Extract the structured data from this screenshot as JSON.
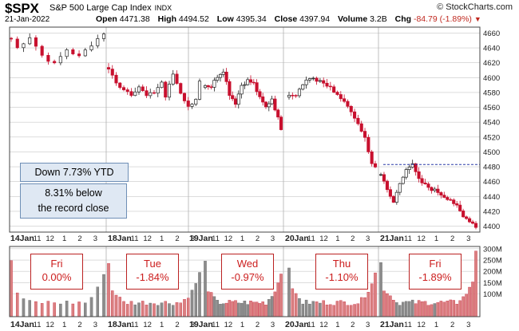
{
  "header": {
    "symbol": "$SPX",
    "name": "S&P 500 Large Cap Index",
    "exchange": "INDX",
    "brand": "© StockCharts.com",
    "date": "21-Jan-2022",
    "open_label": "Open",
    "open": "4471.38",
    "high_label": "High",
    "high": "4494.52",
    "low_label": "Low",
    "low": "4395.34",
    "close_label": "Close",
    "close": "4397.94",
    "volume_label": "Volume",
    "volume": "3.2B",
    "chg_label": "Chg",
    "chg": "-84.79 (-1.89%)",
    "chg_icon": "down-triangle-icon"
  },
  "annotations": {
    "ytd": "Down 7.73% YTD",
    "record_line1": "8.31% below",
    "record_line2": "the record close"
  },
  "days": [
    {
      "day": "Fri",
      "pct": "0.00%"
    },
    {
      "day": "Tue",
      "pct": "-1.84%"
    },
    {
      "day": "Wed",
      "pct": "-0.97%"
    },
    {
      "day": "Thu",
      "pct": "-1.10%"
    },
    {
      "day": "Fri",
      "pct": "-1.89%"
    }
  ],
  "colors": {
    "up": "#222222",
    "down": "#c8102e",
    "vol_up": "#8c8c8c",
    "vol_down": "#d98080",
    "grid": "#c8c8c8",
    "day_sep": "#b0b0b0",
    "ref_line": "#2a3aa8",
    "annotation_bg": "#dfe8f3"
  },
  "chart_data": {
    "type": "candlestick",
    "price_axis": {
      "ticks": [
        4400,
        4420,
        4440,
        4460,
        4480,
        4500,
        4520,
        4540,
        4560,
        4580,
        4600,
        4620,
        4640,
        4660
      ],
      "range": [
        4392,
        4668
      ]
    },
    "volume_axis": {
      "ticks": [
        "100M",
        "150M",
        "200M",
        "250M",
        "300M"
      ],
      "tick_values": [
        100,
        150,
        200,
        250,
        300
      ],
      "range": [
        0,
        310
      ]
    },
    "x_ticks": [
      "14Jan",
      "11",
      "12",
      "1",
      "2",
      "3",
      "18Jan",
      "11",
      "12",
      "1",
      "2",
      "3",
      "19Jan",
      "11",
      "12",
      "1",
      "2",
      "3",
      "20Jan",
      "11",
      "12",
      "1",
      "2",
      "3",
      "21Jan",
      "11",
      "12",
      "1",
      "2",
      "3"
    ],
    "reference_line": 4483,
    "sessions": [
      {
        "label": "14Jan",
        "anchors": [
          [
            0,
            4652
          ],
          [
            1,
            4640
          ],
          [
            3,
            4655
          ],
          [
            5,
            4630
          ],
          [
            7,
            4618
          ],
          [
            9,
            4638
          ],
          [
            11,
            4628
          ],
          [
            13,
            4645
          ],
          [
            15,
            4660
          ]
        ]
      },
      {
        "label": "18Jan",
        "anchors": [
          [
            0,
            4612
          ],
          [
            2,
            4592
          ],
          [
            4,
            4585
          ],
          [
            6,
            4578
          ],
          [
            8,
            4588
          ],
          [
            10,
            4575
          ],
          [
            12,
            4580
          ],
          [
            14,
            4594
          ],
          [
            15,
            4574
          ],
          [
            17,
            4605
          ],
          [
            19,
            4580
          ],
          [
            21,
            4560
          ],
          [
            23,
            4572
          ],
          [
            24,
            4594
          ]
        ]
      },
      {
        "label": "19Jan",
        "anchors": [
          [
            0,
            4590
          ],
          [
            2,
            4588
          ],
          [
            4,
            4602
          ],
          [
            6,
            4610
          ],
          [
            8,
            4578
          ],
          [
            10,
            4566
          ],
          [
            12,
            4590
          ],
          [
            14,
            4596
          ],
          [
            16,
            4592
          ],
          [
            18,
            4572
          ],
          [
            20,
            4560
          ],
          [
            22,
            4572
          ],
          [
            24,
            4545
          ],
          [
            25,
            4532
          ]
        ]
      },
      {
        "label": "20Jan",
        "anchors": [
          [
            0,
            4574
          ],
          [
            2,
            4578
          ],
          [
            4,
            4592
          ],
          [
            6,
            4600
          ],
          [
            8,
            4596
          ],
          [
            10,
            4592
          ],
          [
            12,
            4586
          ],
          [
            14,
            4578
          ],
          [
            16,
            4566
          ],
          [
            18,
            4556
          ],
          [
            20,
            4538
          ],
          [
            22,
            4520
          ],
          [
            23,
            4500
          ],
          [
            24,
            4485
          ],
          [
            25,
            4482
          ]
        ]
      },
      {
        "label": "21Jan",
        "anchors": [
          [
            0,
            4470
          ],
          [
            2,
            4448
          ],
          [
            4,
            4432
          ],
          [
            6,
            4458
          ],
          [
            8,
            4478
          ],
          [
            10,
            4482
          ],
          [
            12,
            4462
          ],
          [
            14,
            4455
          ],
          [
            16,
            4450
          ],
          [
            18,
            4446
          ],
          [
            20,
            4440
          ],
          [
            22,
            4436
          ],
          [
            24,
            4426
          ],
          [
            26,
            4412
          ],
          [
            28,
            4408
          ],
          [
            30,
            4400
          ]
        ]
      }
    ],
    "volume_profile": {
      "open_spike": 215,
      "base": 65,
      "midday": 50,
      "close_ramp": 120,
      "last_bar": 290
    }
  }
}
